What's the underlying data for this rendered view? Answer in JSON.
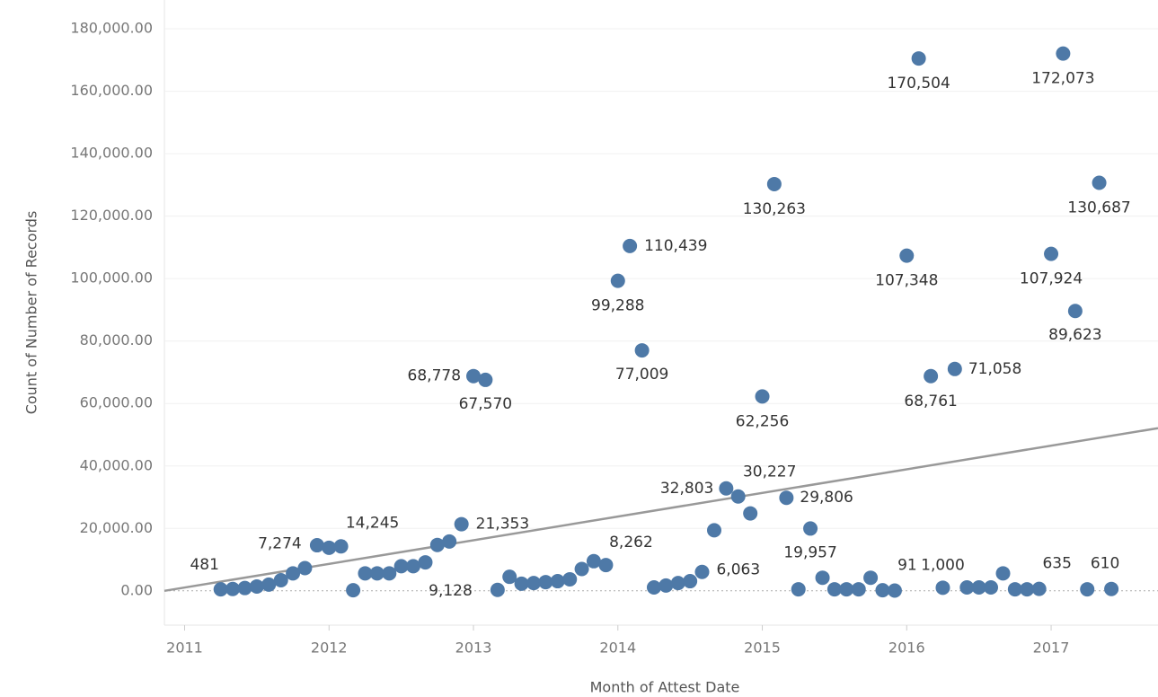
{
  "chart_data": {
    "type": "scatter",
    "x_label": "Month of Attest Date",
    "y_label": "Count of Number of Records",
    "color": "#4e79a7",
    "xlim": [
      2010.86,
      2017.74
    ],
    "ylim": [
      -11000,
      182000
    ],
    "xticks": [
      2011,
      2012,
      2013,
      2014,
      2015,
      2016,
      2017
    ],
    "yticks": [
      {
        "value": 0,
        "label": "0.00"
      },
      {
        "value": 20000,
        "label": "20,000.00"
      },
      {
        "value": 40000,
        "label": "40,000.00"
      },
      {
        "value": 60000,
        "label": "60,000.00"
      },
      {
        "value": 80000,
        "label": "80,000.00"
      },
      {
        "value": 100000,
        "label": "100,000.00"
      },
      {
        "value": 120000,
        "label": "120,000.00"
      },
      {
        "value": 140000,
        "label": "140,000.00"
      },
      {
        "value": 160000,
        "label": "160,000.00"
      },
      {
        "value": 180000,
        "label": "180,000.00"
      }
    ],
    "grid": true,
    "x": [
      2011.25,
      2011.333,
      2011.417,
      2011.5,
      2011.583,
      2011.667,
      2011.75,
      2011.833,
      2011.917,
      2012.0,
      2012.083,
      2012.167,
      2012.25,
      2012.333,
      2012.417,
      2012.5,
      2012.583,
      2012.667,
      2012.75,
      2012.833,
      2012.917,
      2013.0,
      2013.083,
      2013.167,
      2013.25,
      2013.333,
      2013.417,
      2013.5,
      2013.583,
      2013.667,
      2013.75,
      2013.833,
      2013.917,
      2014.0,
      2014.083,
      2014.167,
      2014.25,
      2014.333,
      2014.417,
      2014.5,
      2014.583,
      2014.667,
      2014.75,
      2014.833,
      2014.917,
      2015.0,
      2015.083,
      2015.167,
      2015.25,
      2015.333,
      2015.417,
      2015.5,
      2015.583,
      2015.667,
      2015.75,
      2015.833,
      2015.917,
      2016.0,
      2016.083,
      2016.167,
      2016.25,
      2016.333,
      2016.417,
      2016.5,
      2016.583,
      2016.667,
      2016.75,
      2016.833,
      2016.917,
      2017.0,
      2017.083,
      2017.167,
      2017.25,
      2017.333,
      2017.417
    ],
    "values": [
      481,
      600,
      900,
      1400,
      2000,
      3400,
      5600,
      7274,
      14600,
      13800,
      14245,
      200,
      5600,
      5600,
      5600,
      7900,
      7900,
      9128,
      14700,
      15800,
      21353,
      68778,
      67570,
      300,
      4500,
      2300,
      2500,
      2800,
      3100,
      3700,
      7000,
      9500,
      8262,
      99288,
      110439,
      77009,
      1100,
      1700,
      2500,
      3100,
      6063,
      19400,
      32803,
      30227,
      24800,
      62256,
      130263,
      29806,
      500,
      19957,
      4200,
      500,
      500,
      500,
      4200,
      200,
      91,
      107348,
      170504,
      68761,
      1000,
      71058,
      1100,
      1100,
      1100,
      5600,
      500,
      500,
      635,
      107924,
      172073,
      89623,
      500,
      130687,
      610
    ],
    "value_labels": [
      "481",
      null,
      null,
      null,
      null,
      null,
      null,
      "7,274",
      null,
      null,
      "14,245",
      null,
      null,
      null,
      null,
      null,
      null,
      "9,128",
      null,
      null,
      "21,353",
      "68,778",
      "67,570",
      null,
      null,
      null,
      null,
      null,
      null,
      null,
      null,
      null,
      "8,262",
      "99,288",
      "110,439",
      "77,009",
      null,
      null,
      null,
      null,
      "6,063",
      null,
      "32,803",
      "30,227",
      null,
      "62,256",
      "130,263",
      "29,806",
      null,
      "19,957",
      null,
      null,
      null,
      null,
      null,
      null,
      "91",
      "107,348",
      "170,504",
      "68,761",
      "1,000",
      "71,058",
      null,
      null,
      null,
      null,
      null,
      null,
      "635",
      "107,924",
      "172,073",
      "89,623",
      null,
      "130,687",
      "610"
    ],
    "trend": {
      "x": [
        2010.86,
        2017.74
      ],
      "values": [
        0,
        52100
      ],
      "color": "#999999"
    }
  }
}
